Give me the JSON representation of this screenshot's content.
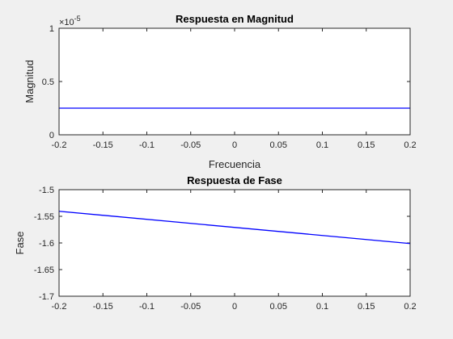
{
  "chart_data": [
    {
      "type": "line",
      "title": "Respuesta en Magnitud",
      "xlabel": "Frecuencia",
      "ylabel": "Magnitud",
      "xlim": [
        -0.2,
        0.2
      ],
      "ylim": [
        0,
        1
      ],
      "y_multiplier": "×10",
      "y_exponent": "-5",
      "xticks": [
        "-0.2",
        "-0.15",
        "-0.1",
        "-0.05",
        "0",
        "0.05",
        "0.1",
        "0.15",
        "0.2"
      ],
      "yticks": [
        "0",
        "0.5",
        "1"
      ],
      "series": [
        {
          "x": [
            -0.2,
            0.2
          ],
          "y": [
            0.25,
            0.25
          ],
          "color": "#0000ff"
        }
      ]
    },
    {
      "type": "line",
      "title": "Respuesta de Fase",
      "xlabel": "",
      "ylabel": "Fase",
      "xlim": [
        -0.2,
        0.2
      ],
      "ylim": [
        -1.7,
        -1.5
      ],
      "xticks": [
        "-0.2",
        "-0.15",
        "-0.1",
        "-0.05",
        "0",
        "0.05",
        "0.1",
        "0.15",
        "0.2"
      ],
      "yticks": [
        "-1.7",
        "-1.65",
        "-1.6",
        "-1.55",
        "-1.5"
      ],
      "series": [
        {
          "x": [
            -0.2,
            0.2
          ],
          "y": [
            -1.5405,
            -1.6011
          ],
          "color": "#0000ff"
        }
      ]
    }
  ]
}
